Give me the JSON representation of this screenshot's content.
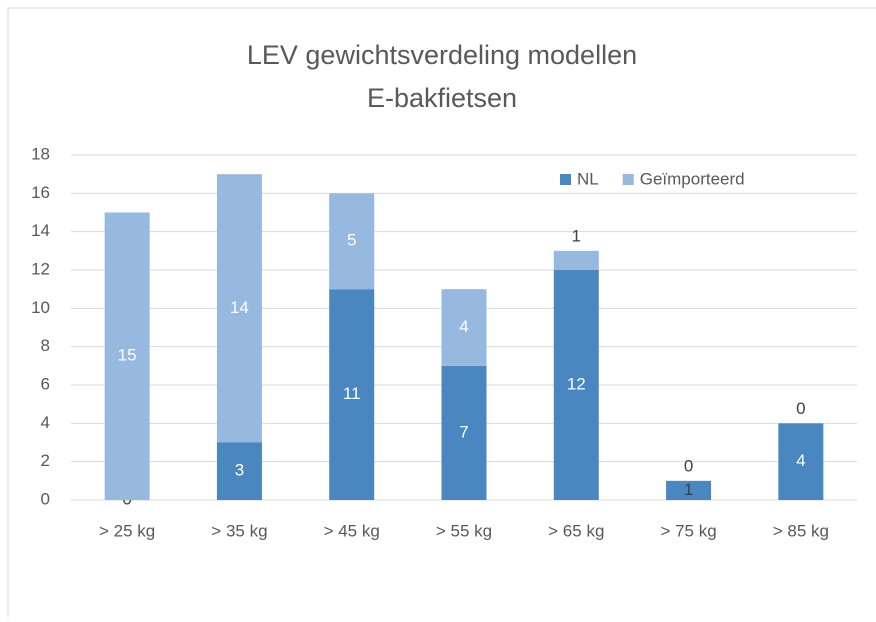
{
  "chart_data": {
    "type": "stacked_bar",
    "title": [
      "LEV gewichtsverdeling modellen",
      "E-bakfietsen"
    ],
    "categories": [
      "> 25 kg",
      "> 35 kg",
      "> 45 kg",
      "> 55 kg",
      "> 65 kg",
      "> 75 kg",
      "> 85 kg"
    ],
    "series": [
      {
        "name": "NL",
        "color": "#4a86bf",
        "values": [
          0,
          3,
          11,
          7,
          12,
          1,
          4
        ]
      },
      {
        "name": "Geïmporteerd",
        "color": "#97b9e0",
        "values": [
          15,
          14,
          5,
          4,
          1,
          0,
          0
        ]
      }
    ],
    "ylim": [
      0,
      18
    ],
    "yticks": [
      0,
      2,
      4,
      6,
      8,
      10,
      12,
      14,
      16,
      18
    ],
    "grid": true,
    "legend": "top-right"
  }
}
